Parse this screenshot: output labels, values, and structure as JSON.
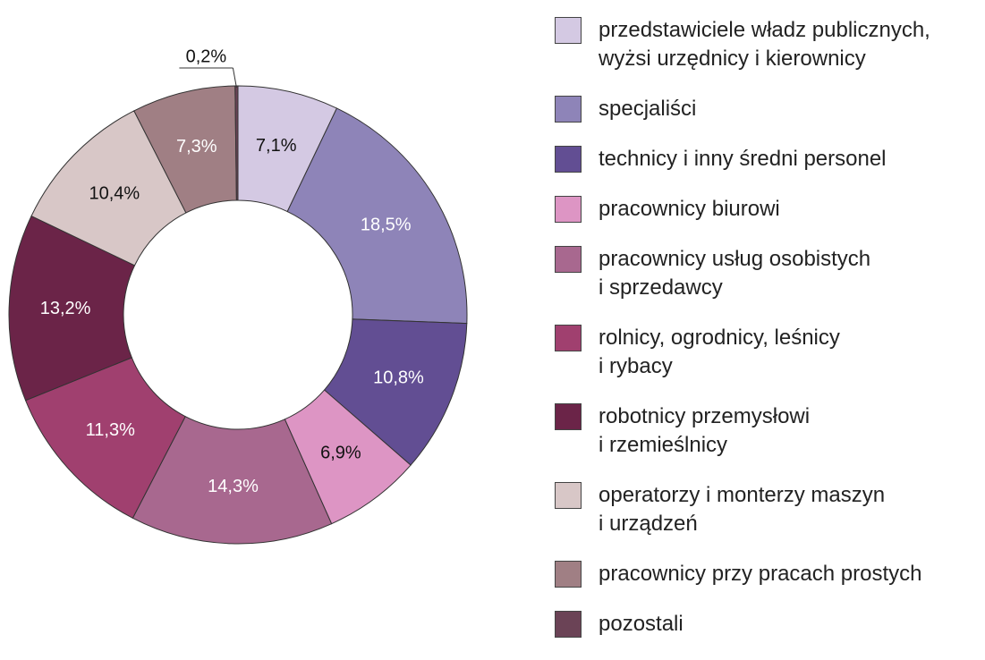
{
  "chart_data": {
    "type": "donut",
    "categories": [
      "przedstawiciele władz publicznych,\nwyżsi urzędnicy i kierownicy",
      "specjaliści",
      "technicy i inny średni personel",
      "pracownicy biurowi",
      "pracownicy usług osobistych\ni sprzedawcy",
      "rolnicy, ogrodnicy, leśnicy\ni rybacy",
      "robotnicy przemysłowi\ni rzemieślnicy",
      "operatorzy i monterzy maszyn\ni urządzeń",
      "pracownicy przy pracach prostych",
      "pozostali"
    ],
    "values": [
      7.1,
      18.5,
      10.8,
      6.9,
      14.3,
      11.3,
      13.2,
      10.4,
      7.3,
      0.2
    ],
    "value_labels": [
      "7,1%",
      "18,5%",
      "10,8%",
      "6,9%",
      "14,3%",
      "11,3%",
      "13,2%",
      "10,4%",
      "7,3%",
      "0,2%"
    ],
    "colors": [
      "#d4c9e3",
      "#8e84b8",
      "#624e93",
      "#dd95c4",
      "#a8688f",
      "#a0406f",
      "#6b2448",
      "#d8c7c7",
      "#a07f84",
      "#6b4356"
    ],
    "legend": "right"
  }
}
